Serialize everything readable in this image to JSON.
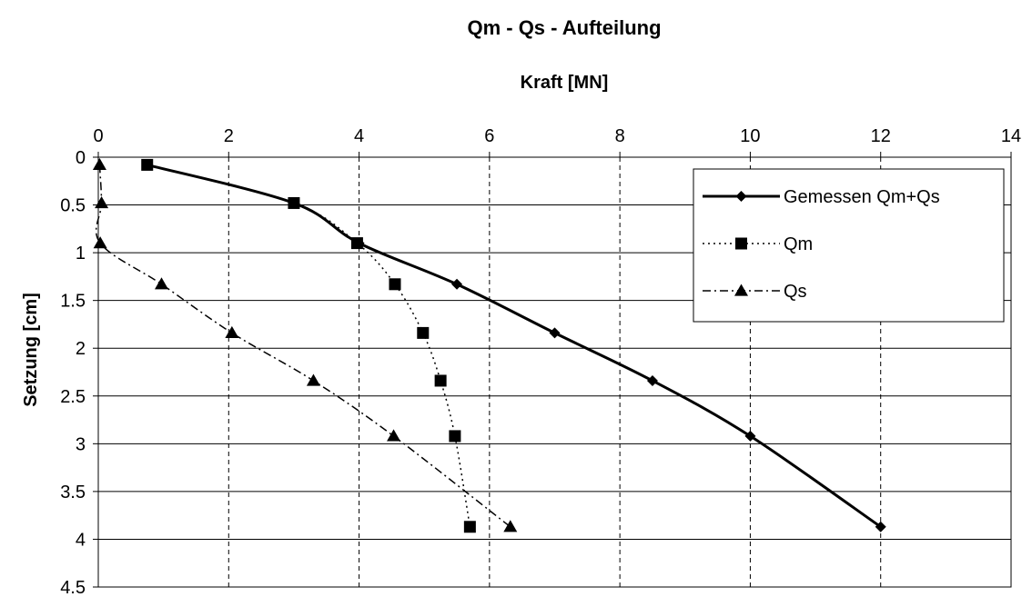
{
  "chart_data": {
    "type": "scatter",
    "title": "Qm - Qs - Aufteilung",
    "xlabel": "Kraft [MN]",
    "ylabel": "Setzung [cm]",
    "xlim": [
      0,
      14
    ],
    "ylim": [
      0,
      4.5
    ],
    "x_ticks": [
      "0",
      "2",
      "4",
      "6",
      "8",
      "10",
      "12",
      "14"
    ],
    "y_ticks": [
      "0",
      "0.5",
      "1",
      "1.5",
      "2",
      "2.5",
      "3",
      "3.5",
      "4",
      "4.5"
    ],
    "y_axis_inverted": true,
    "x_axis_position": "top",
    "x_grid": "dashed",
    "y_grid": "solid",
    "legend_position": "top-right",
    "series": [
      {
        "name": "Gemessen Qm+Qs",
        "marker": "diamond",
        "line": "solid",
        "points": [
          {
            "x": 0.75,
            "y": 0.08
          },
          {
            "x": 3.0,
            "y": 0.48
          },
          {
            "x": 4.0,
            "y": 0.9
          },
          {
            "x": 5.5,
            "y": 1.33
          },
          {
            "x": 7.0,
            "y": 1.84
          },
          {
            "x": 8.5,
            "y": 2.34
          },
          {
            "x": 10.0,
            "y": 2.92
          },
          {
            "x": 12.0,
            "y": 3.87
          }
        ]
      },
      {
        "name": "Qm",
        "marker": "square",
        "line": "dotted",
        "points": [
          {
            "x": 0.75,
            "y": 0.08
          },
          {
            "x": 3.0,
            "y": 0.48
          },
          {
            "x": 3.97,
            "y": 0.9
          },
          {
            "x": 4.55,
            "y": 1.33
          },
          {
            "x": 4.98,
            "y": 1.84
          },
          {
            "x": 5.25,
            "y": 2.34
          },
          {
            "x": 5.47,
            "y": 2.92
          },
          {
            "x": 5.7,
            "y": 3.87
          }
        ]
      },
      {
        "name": "Qs",
        "marker": "triangle",
        "line": "dashdot",
        "points": [
          {
            "x": 0.02,
            "y": 0.08
          },
          {
            "x": 0.05,
            "y": 0.48
          },
          {
            "x": 0.03,
            "y": 0.9
          },
          {
            "x": 0.97,
            "y": 1.33
          },
          {
            "x": 2.05,
            "y": 1.84
          },
          {
            "x": 3.3,
            "y": 2.34
          },
          {
            "x": 4.53,
            "y": 2.92
          },
          {
            "x": 6.32,
            "y": 3.87
          }
        ]
      }
    ]
  }
}
